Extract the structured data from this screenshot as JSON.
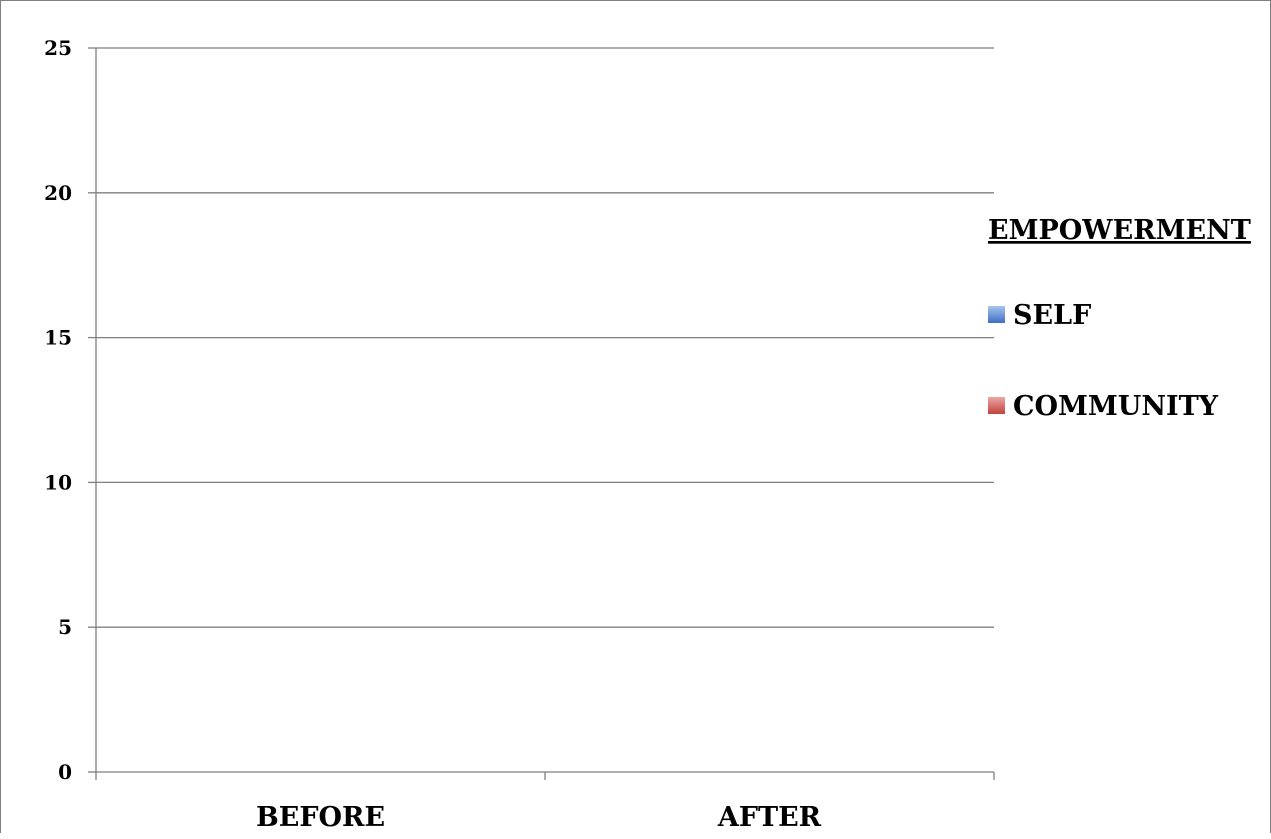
{
  "chart_data": {
    "type": "bar",
    "categories": [
      "BEFORE",
      "AFTER"
    ],
    "series": [
      {
        "name": "SELF",
        "values": [
          null,
          null
        ],
        "color": "#4f81bd"
      },
      {
        "name": "COMMUNITY",
        "values": [
          null,
          null
        ],
        "color": "#c0504d"
      }
    ],
    "ylim": [
      0,
      25
    ],
    "yticks": [
      0,
      5,
      10,
      15,
      20,
      25
    ],
    "grid": true,
    "legend": {
      "title": "EMPOWERMENT",
      "placement": "right",
      "entries": [
        "SELF",
        "COMMUNITY"
      ]
    }
  },
  "colors": {
    "gridline": "#7f7f7f",
    "axis": "#7f7f7f",
    "self_swatch": "#4f81bd",
    "community_swatch": "#c0504d"
  }
}
